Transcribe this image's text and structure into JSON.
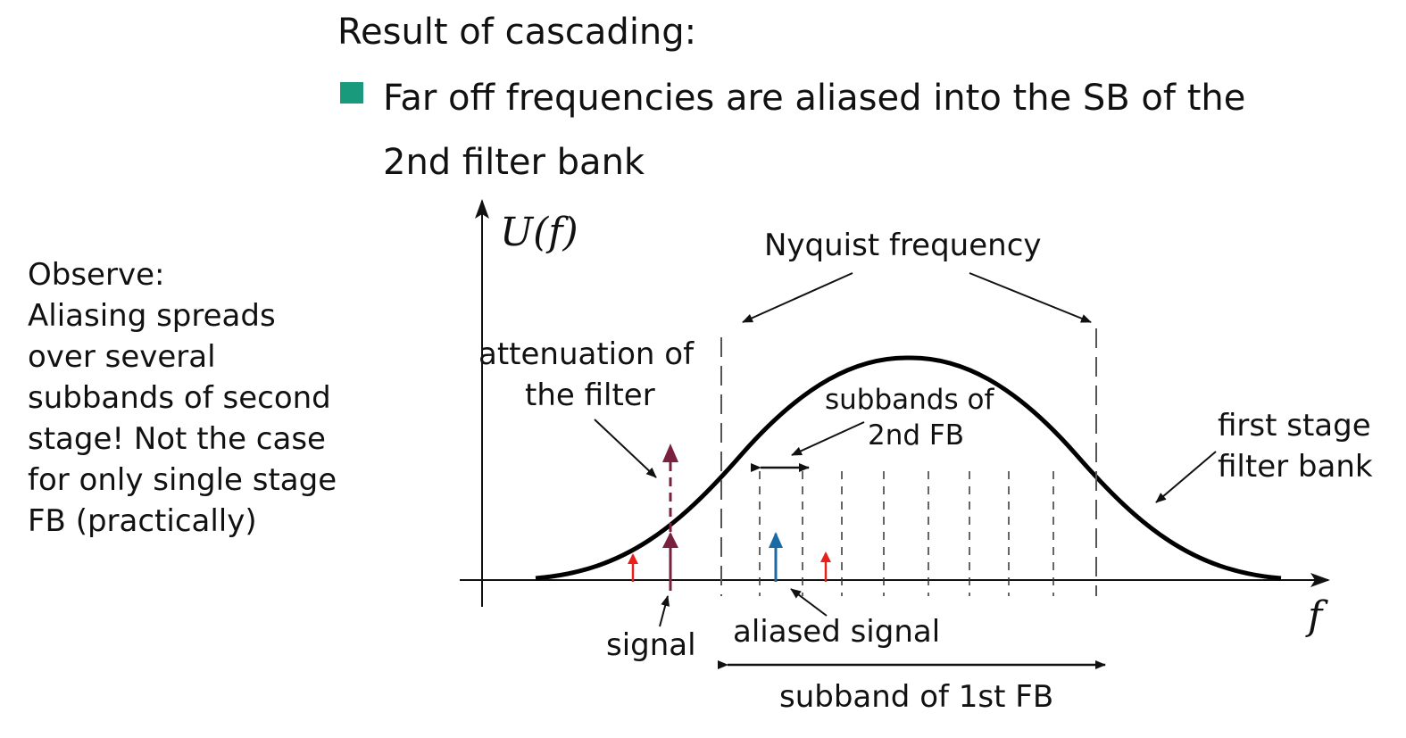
{
  "slide": {
    "heading": "Result of cascading:",
    "bullet": {
      "line1": "Far off frequencies are aliased into the SB of the",
      "line2": "2nd filter bank"
    },
    "observe": [
      "Observe:",
      "Aliasing spreads",
      "over several",
      "subbands of second",
      "stage! Not the case",
      "for only  single stage",
      "FB (practically)"
    ]
  },
  "diagram": {
    "y_axis_label": "U(f)",
    "x_axis_label": "f",
    "labels": {
      "nyquist": "Nyquist frequency",
      "attenuation_l1": "attenuation of",
      "attenuation_l2": "the filter",
      "subbands_l1": "subbands of",
      "subbands_l2": "2nd FB",
      "first_stage_l1": "first stage",
      "first_stage_l2": "filter bank",
      "signal": "signal",
      "aliased_signal": "aliased signal",
      "subband_1st": "subband of 1st FB"
    },
    "colors": {
      "bullet": "#1a9a7c",
      "signal": "#7a2140",
      "aliased": "#1a6aa6",
      "small_arrows": "#e8201c",
      "curve": "#000000"
    }
  }
}
